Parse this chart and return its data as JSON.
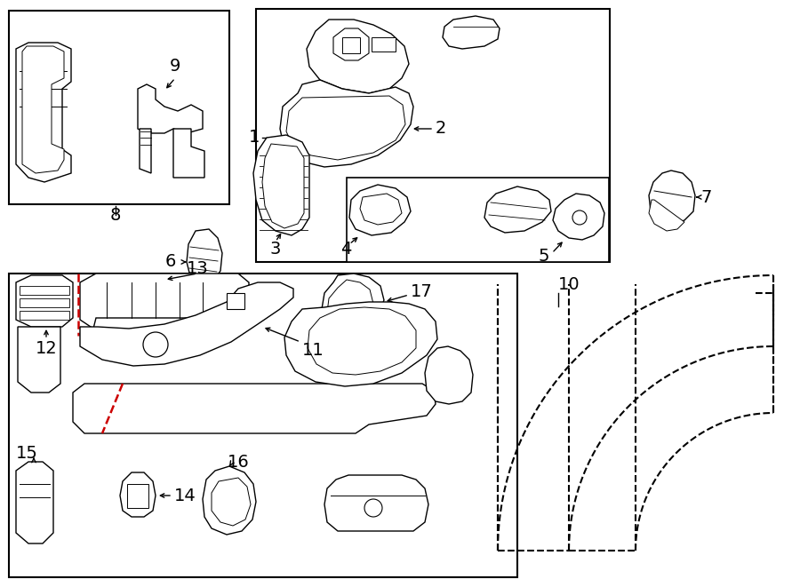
{
  "bg": "#ffffff",
  "lc": "#000000",
  "rc": "#cc0000",
  "fw": 9.0,
  "fh": 6.61,
  "dpi": 100
}
